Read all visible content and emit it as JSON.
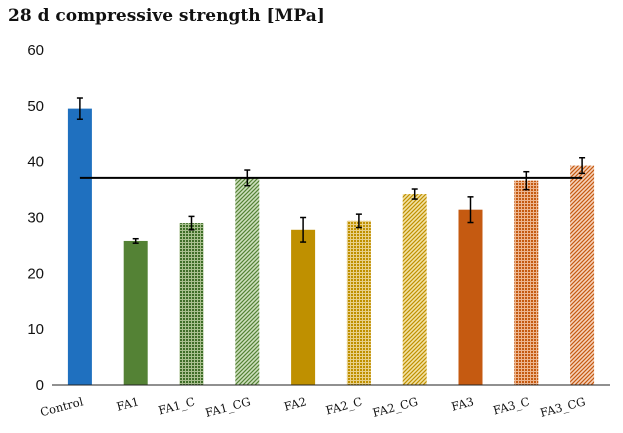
{
  "chart_data": {
    "type": "bar",
    "title": "28 d compressive strength [MPa]",
    "xlabel": "",
    "ylabel": "",
    "ylim": [
      0,
      60
    ],
    "yticks": [
      0,
      10,
      20,
      30,
      40,
      50,
      60
    ],
    "categories": [
      "Control",
      "FA1",
      "FA1_C",
      "FA1_CG",
      "FA2",
      "FA2_C",
      "FA2_CG",
      "FA3",
      "FA3_C",
      "FA3_CG"
    ],
    "values": [
      49.5,
      25.8,
      29.0,
      37.1,
      27.8,
      29.4,
      34.2,
      31.4,
      36.6,
      39.3
    ],
    "errors": [
      1.9,
      0.4,
      1.2,
      1.4,
      2.2,
      1.2,
      0.9,
      2.3,
      1.6,
      1.4
    ],
    "bar_colors": [
      "#1F70BF",
      "#548235",
      "#548235",
      "#548235",
      "#BF9000",
      "#BF9000",
      "#BF9000",
      "#C55A11",
      "#C55A11",
      "#C55A11"
    ],
    "bar_patterns": [
      "solid",
      "solid",
      "dotted",
      "hatched",
      "solid",
      "dotted",
      "hatched",
      "solid",
      "dotted",
      "hatched"
    ],
    "reference_line": {
      "value": 37.1
    },
    "grid": false,
    "legend": "none"
  }
}
